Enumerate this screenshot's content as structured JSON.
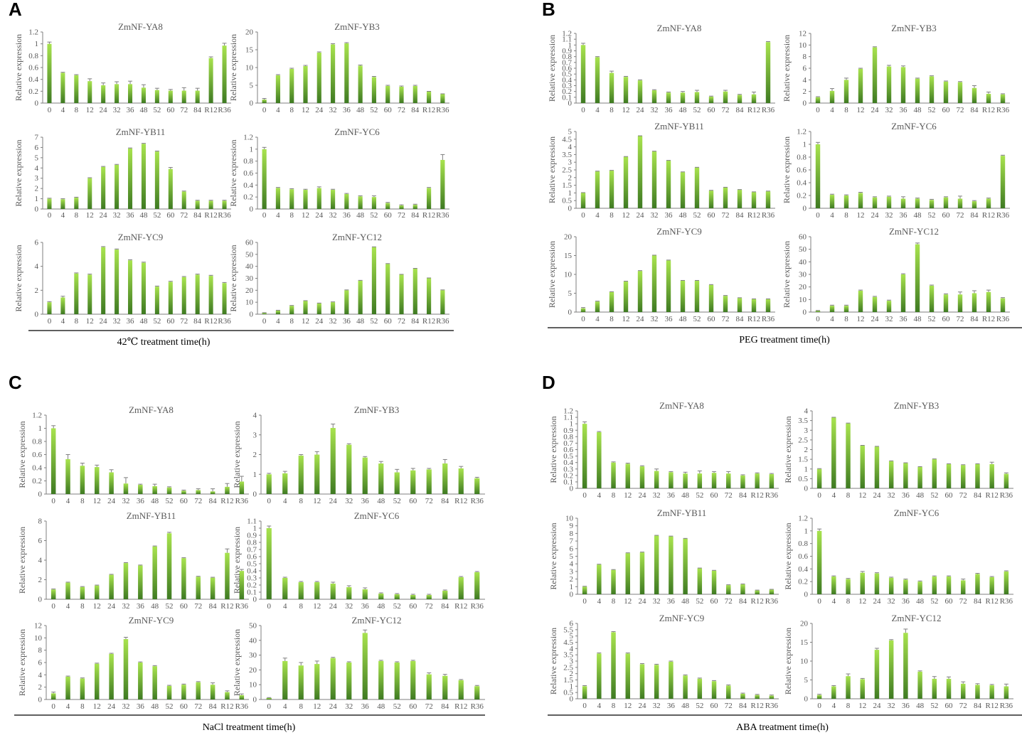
{
  "figure": {
    "categories": [
      "0",
      "4",
      "8",
      "12",
      "24",
      "32",
      "36",
      "48",
      "52",
      "60",
      "72",
      "84",
      "R12",
      "R36"
    ],
    "y_axis_label": "Relative expression",
    "colors": {
      "bar_top": "#a8e34e",
      "bar_bottom": "#3e7a22",
      "axis": "#7f7f7f",
      "text": "#595959",
      "rule": "#000000"
    }
  },
  "chart_data": [
    {
      "panel": "A",
      "type": "bar",
      "xlabel": "42℃ treatment time(h)",
      "charts": [
        {
          "title": "ZmNF-YA8",
          "ylim": [
            0,
            1.2
          ],
          "step": 0.2,
          "values": [
            1.0,
            0.51,
            0.47,
            0.37,
            0.3,
            0.32,
            0.32,
            0.26,
            0.22,
            0.21,
            0.21,
            0.21,
            0.76,
            0.97
          ],
          "errors": [
            0.03,
            0.01,
            0.01,
            0.04,
            0.04,
            0.04,
            0.05,
            0.05,
            0.03,
            0.02,
            0.05,
            0.04,
            0.02,
            0.04
          ]
        },
        {
          "title": "ZmNF-YB3",
          "ylim": [
            0,
            20
          ],
          "step": 5,
          "values": [
            1.0,
            7.8,
            9.6,
            10.4,
            14.2,
            16.5,
            16.8,
            10.5,
            7.3,
            4.8,
            4.6,
            4.8,
            3.2,
            2.5
          ],
          "errors": [
            0.3,
            0.2,
            0.2,
            0.2,
            0.2,
            0.2,
            0.2,
            0.2,
            0.2,
            0.2,
            0.2,
            0.2,
            0.1,
            0.1
          ]
        },
        {
          "title": "ZmNF-YB11",
          "ylim": [
            0,
            7
          ],
          "step": 1,
          "values": [
            1.0,
            0.95,
            1.1,
            3.0,
            4.1,
            4.3,
            5.9,
            6.35,
            5.6,
            3.9,
            1.7,
            0.8,
            0.8,
            0.8
          ],
          "errors": [
            0.05,
            0.05,
            0.05,
            0.05,
            0.05,
            0.05,
            0.05,
            0.05,
            0.05,
            0.15,
            0.05,
            0.05,
            0.05,
            0.05
          ]
        },
        {
          "title": "ZmNF-YC6",
          "ylim": [
            0,
            1.2
          ],
          "step": 0.2,
          "values": [
            1.0,
            0.35,
            0.33,
            0.32,
            0.35,
            0.32,
            0.25,
            0.21,
            0.2,
            0.1,
            0.06,
            0.07,
            0.35,
            0.82
          ],
          "errors": [
            0.03,
            0.01,
            0.01,
            0.01,
            0.02,
            0.01,
            0.01,
            0.01,
            0.02,
            0.01,
            0.01,
            0.01,
            0.01,
            0.09
          ]
        },
        {
          "title": "ZmNF-YC9",
          "ylim": [
            0,
            6
          ],
          "step": 2,
          "values": [
            1.0,
            1.4,
            3.4,
            3.3,
            5.6,
            5.4,
            4.5,
            4.3,
            2.3,
            2.7,
            3.1,
            3.3,
            3.2,
            2.6
          ],
          "errors": [
            0.05,
            0.1,
            0.05,
            0.05,
            0.05,
            0.05,
            0.05,
            0.05,
            0.05,
            0.05,
            0.05,
            0.05,
            0.05,
            0.05
          ]
        },
        {
          "title": "ZmNF-YC12",
          "ylim": [
            0,
            60
          ],
          "step": 10,
          "values": [
            1.0,
            3.0,
            7.0,
            11.0,
            9.0,
            10.0,
            20.0,
            28.0,
            56.0,
            42.0,
            33.0,
            38.0,
            30.0,
            20.0
          ],
          "errors": [
            0.3,
            0.3,
            0.3,
            0.3,
            0.3,
            0.3,
            0.3,
            0.3,
            0.3,
            0.3,
            0.3,
            0.3,
            0.3,
            0.3
          ]
        }
      ]
    },
    {
      "panel": "B",
      "type": "bar",
      "xlabel": "PEG treatment time(h)",
      "charts": [
        {
          "title": "ZmNF-YA8",
          "ylim": [
            0,
            1.2
          ],
          "step": 0.1,
          "values": [
            1.0,
            0.79,
            0.52,
            0.45,
            0.39,
            0.22,
            0.18,
            0.18,
            0.19,
            0.11,
            0.2,
            0.14,
            0.15,
            1.05
          ],
          "errors": [
            0.03,
            0.01,
            0.03,
            0.01,
            0.01,
            0.01,
            0.01,
            0.02,
            0.03,
            0.01,
            0.02,
            0.01,
            0.04,
            0.01
          ]
        },
        {
          "title": "ZmNF-YB3",
          "ylim": [
            0,
            12
          ],
          "step": 2,
          "values": [
            1.0,
            2.1,
            4.0,
            5.9,
            9.6,
            6.3,
            6.2,
            4.2,
            4.6,
            3.7,
            3.6,
            2.6,
            1.6,
            1.5
          ],
          "errors": [
            0.1,
            0.4,
            0.3,
            0.1,
            0.1,
            0.2,
            0.2,
            0.1,
            0.1,
            0.1,
            0.1,
            0.4,
            0.3,
            0.1
          ]
        },
        {
          "title": "ZmNF-YB11",
          "ylim": [
            0,
            5
          ],
          "step": 0.5,
          "values": [
            1.0,
            2.4,
            2.45,
            3.35,
            4.7,
            3.7,
            3.1,
            2.35,
            2.65,
            1.15,
            1.35,
            1.2,
            1.05,
            1.1
          ],
          "errors": [
            0.02,
            0.02,
            0.02,
            0.02,
            0.02,
            0.02,
            0.02,
            0.02,
            0.02,
            0.02,
            0.02,
            0.02,
            0.02,
            0.02
          ]
        },
        {
          "title": "ZmNF-YC6",
          "ylim": [
            0,
            1.2
          ],
          "step": 0.2,
          "values": [
            1.0,
            0.21,
            0.2,
            0.24,
            0.17,
            0.18,
            0.15,
            0.15,
            0.13,
            0.17,
            0.15,
            0.11,
            0.15,
            0.82
          ],
          "errors": [
            0.03,
            0.01,
            0.01,
            0.01,
            0.01,
            0.01,
            0.03,
            0.01,
            0.01,
            0.01,
            0.04,
            0.01,
            0.01,
            0.01
          ]
        },
        {
          "title": "ZmNF-YC9",
          "ylim": [
            0,
            20
          ],
          "step": 5,
          "values": [
            1.0,
            2.8,
            5.3,
            8.1,
            10.9,
            15.0,
            13.7,
            8.3,
            8.3,
            7.2,
            4.3,
            3.7,
            3.4,
            3.4
          ],
          "errors": [
            0.2,
            0.1,
            0.1,
            0.1,
            0.1,
            0.1,
            0.1,
            0.1,
            0.1,
            0.1,
            0.1,
            0.1,
            0.1,
            0.1
          ]
        },
        {
          "title": "ZmNF-YC12",
          "ylim": [
            0,
            60
          ],
          "step": 10,
          "values": [
            1.0,
            5.0,
            5.0,
            17.0,
            12.0,
            9.0,
            30.0,
            54.0,
            21.0,
            14.0,
            14.0,
            15.0,
            16.0,
            11.0
          ],
          "errors": [
            0.3,
            0.5,
            0.5,
            0.5,
            0.5,
            0.5,
            0.5,
            1.0,
            0.5,
            0.5,
            2.0,
            2.0,
            1.5,
            0.5
          ]
        }
      ]
    },
    {
      "panel": "C",
      "type": "bar",
      "xlabel": "NaCl treatment time(h)",
      "charts": [
        {
          "title": "ZmNF-YA8",
          "ylim": [
            0,
            1.2
          ],
          "step": 0.2,
          "values": [
            1.0,
            0.53,
            0.43,
            0.41,
            0.33,
            0.16,
            0.14,
            0.12,
            0.1,
            0.05,
            0.06,
            0.04,
            0.11,
            0.19
          ],
          "errors": [
            0.04,
            0.07,
            0.04,
            0.03,
            0.04,
            0.09,
            0.01,
            0.03,
            0.01,
            0.01,
            0.02,
            0.04,
            0.05,
            0.08
          ]
        },
        {
          "title": "ZmNF-YB3",
          "ylim": [
            0,
            4
          ],
          "step": 1,
          "values": [
            1.0,
            1.05,
            1.95,
            2.0,
            3.35,
            2.5,
            1.85,
            1.55,
            1.1,
            1.2,
            1.25,
            1.55,
            1.3,
            0.8
          ],
          "errors": [
            0.05,
            0.1,
            0.05,
            0.15,
            0.2,
            0.05,
            0.05,
            0.1,
            0.15,
            0.1,
            0.05,
            0.2,
            0.1,
            0.05
          ]
        },
        {
          "title": "ZmNF-YB11",
          "ylim": [
            0,
            8
          ],
          "step": 2,
          "values": [
            1.0,
            1.7,
            1.25,
            1.4,
            2.5,
            3.7,
            3.45,
            5.4,
            6.75,
            4.2,
            2.3,
            2.2,
            4.75,
            2.9
          ],
          "errors": [
            0.05,
            0.05,
            0.05,
            0.05,
            0.05,
            0.05,
            0.05,
            0.05,
            0.1,
            0.05,
            0.05,
            0.05,
            0.4,
            0.15
          ]
        },
        {
          "title": "ZmNF-YC6",
          "ylim": [
            0,
            1.1
          ],
          "step": 0.1,
          "values": [
            1.0,
            0.3,
            0.24,
            0.24,
            0.22,
            0.17,
            0.14,
            0.08,
            0.07,
            0.06,
            0.06,
            0.12,
            0.31,
            0.38
          ],
          "errors": [
            0.03,
            0.01,
            0.01,
            0.01,
            0.02,
            0.02,
            0.02,
            0.01,
            0.01,
            0.01,
            0.01,
            0.01,
            0.01,
            0.01
          ]
        },
        {
          "title": "ZmNF-YC9",
          "ylim": [
            0,
            12
          ],
          "step": 2,
          "values": [
            1.0,
            3.7,
            3.4,
            5.8,
            7.4,
            9.8,
            6.0,
            5.4,
            2.2,
            2.4,
            2.8,
            2.4,
            1.2,
            0.7
          ],
          "errors": [
            0.2,
            0.1,
            0.1,
            0.1,
            0.1,
            0.3,
            0.1,
            0.1,
            0.1,
            0.1,
            0.1,
            0.3,
            0.2,
            0.2
          ]
        },
        {
          "title": "ZmNF-YC12",
          "ylim": [
            0,
            50
          ],
          "step": 10,
          "values": [
            1.0,
            26.0,
            23.0,
            24.0,
            28.0,
            25.0,
            45.0,
            26.0,
            25.0,
            26.0,
            17.0,
            16.0,
            13.0,
            9.0
          ],
          "errors": [
            0.3,
            2.0,
            2.0,
            2.0,
            0.5,
            0.5,
            2.0,
            0.5,
            0.5,
            0.5,
            1.0,
            1.0,
            0.5,
            0.5
          ]
        }
      ]
    },
    {
      "panel": "D",
      "type": "bar",
      "xlabel": "ABA treatment time(h)",
      "charts": [
        {
          "title": "ZmNF-YA8",
          "ylim": [
            0,
            1.2
          ],
          "step": 0.1,
          "values": [
            1.0,
            0.87,
            0.4,
            0.38,
            0.34,
            0.27,
            0.25,
            0.23,
            0.23,
            0.24,
            0.23,
            0.2,
            0.23,
            0.22
          ],
          "errors": [
            0.03,
            0.01,
            0.01,
            0.01,
            0.01,
            0.03,
            0.01,
            0.02,
            0.04,
            0.02,
            0.03,
            0.01,
            0.01,
            0.01
          ]
        },
        {
          "title": "ZmNF-YB3",
          "ylim": [
            0,
            4
          ],
          "step": 0.5,
          "values": [
            1.0,
            3.65,
            3.35,
            2.2,
            2.15,
            1.4,
            1.3,
            1.1,
            1.5,
            1.25,
            1.2,
            1.25,
            1.25,
            0.75
          ],
          "errors": [
            0.02,
            0.02,
            0.02,
            0.02,
            0.02,
            0.02,
            0.02,
            0.02,
            0.02,
            0.02,
            0.02,
            0.02,
            0.1,
            0.05
          ]
        },
        {
          "title": "ZmNF-YB11",
          "ylim": [
            0,
            10
          ],
          "step": 1,
          "values": [
            1.0,
            3.9,
            3.2,
            5.4,
            5.5,
            7.7,
            7.6,
            7.3,
            3.4,
            3.1,
            1.2,
            1.3,
            0.5,
            0.6
          ],
          "errors": [
            0.05,
            0.05,
            0.05,
            0.05,
            0.05,
            0.05,
            0.05,
            0.05,
            0.05,
            0.05,
            0.05,
            0.05,
            0.05,
            0.05
          ]
        },
        {
          "title": "ZmNF-YC6",
          "ylim": [
            0,
            1.2
          ],
          "step": 0.2,
          "values": [
            1.0,
            0.28,
            0.24,
            0.34,
            0.33,
            0.26,
            0.23,
            0.2,
            0.28,
            0.28,
            0.22,
            0.32,
            0.27,
            0.36
          ],
          "errors": [
            0.03,
            0.01,
            0.01,
            0.02,
            0.01,
            0.01,
            0.01,
            0.01,
            0.01,
            0.01,
            0.02,
            0.01,
            0.01,
            0.01
          ]
        },
        {
          "title": "ZmNF-YC9",
          "ylim": [
            0,
            6
          ],
          "step": 0.5,
          "values": [
            1.0,
            3.6,
            5.3,
            3.6,
            2.75,
            2.7,
            2.95,
            1.85,
            1.6,
            1.4,
            1.05,
            0.4,
            0.3,
            0.25
          ],
          "errors": [
            0.05,
            0.05,
            0.05,
            0.05,
            0.05,
            0.05,
            0.05,
            0.05,
            0.05,
            0.05,
            0.05,
            0.05,
            0.05,
            0.05
          ]
        },
        {
          "title": "ZmNF-YC12",
          "ylim": [
            0,
            20
          ],
          "step": 5,
          "values": [
            1.0,
            3.3,
            6.0,
            5.2,
            13.0,
            15.5,
            17.5,
            7.2,
            5.3,
            5.3,
            4.0,
            3.7,
            3.6,
            3.3
          ],
          "errors": [
            0.2,
            0.2,
            0.6,
            0.2,
            0.4,
            0.2,
            1.0,
            0.2,
            0.6,
            0.5,
            0.5,
            0.3,
            0.2,
            0.6
          ]
        }
      ]
    }
  ]
}
